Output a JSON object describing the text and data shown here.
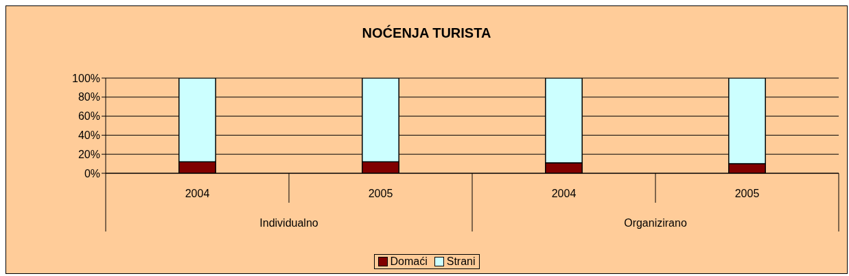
{
  "chart_data": {
    "type": "bar",
    "title": "NOĆENJA TURISTA",
    "stacked": true,
    "categories": [
      "2004",
      "2005",
      "2004",
      "2005"
    ],
    "series": [
      {
        "name": "Domaći",
        "color": "#800000",
        "values": [
          12,
          12,
          11,
          10
        ]
      },
      {
        "name": "Strani",
        "color": "#ccffff",
        "values": [
          88,
          88,
          89,
          90
        ]
      }
    ],
    "ylim": [
      0,
      100
    ],
    "yticks": [
      {
        "value": 0,
        "label": "0%"
      },
      {
        "value": 20,
        "label": "20%"
      },
      {
        "value": 40,
        "label": "40%"
      },
      {
        "value": 60,
        "label": "60%"
      },
      {
        "value": 80,
        "label": "80%"
      },
      {
        "value": 100,
        "label": "100%"
      }
    ],
    "grid": "y",
    "legend": "bottom",
    "annotations": [
      "Individualno",
      "Organizirano"
    ]
  }
}
